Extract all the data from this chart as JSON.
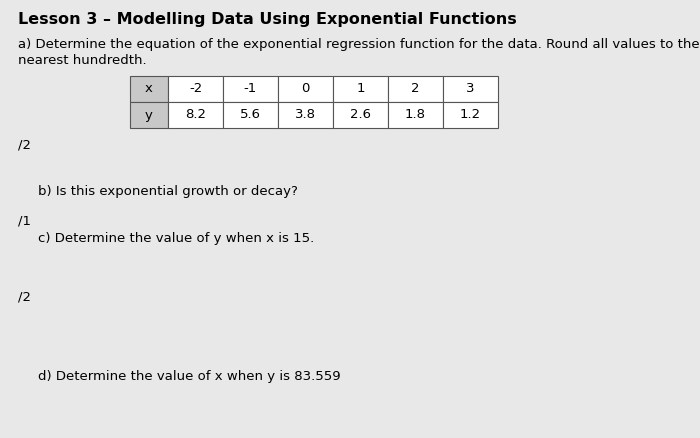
{
  "title": "Lesson 3 – Modelling Data Using Exponential Functions",
  "title_fontsize": 11.5,
  "title_fontweight": "bold",
  "background_color": "#e8e8e8",
  "text_color": "#000000",
  "part_a_text_line1": "a) Determine the equation of the exponential regression function for the data. Round all values to the",
  "part_a_text_line2": "nearest hundredth.",
  "table_x_headers": [
    "x",
    "-2",
    "-1",
    "0",
    "1",
    "2",
    "3"
  ],
  "table_y_headers": [
    "y",
    "8.2",
    "5.6",
    "3.8",
    "2.6",
    "1.8",
    "1.2"
  ],
  "mark_a": "/2",
  "part_b_text": "b) Is this exponential growth or decay?",
  "mark_b": "/1",
  "part_c_text": "c) Determine the value of y when x is 15.",
  "mark_c": "/2",
  "part_d_text": "d) Determine the value of x when y is 83.559",
  "table_header_bg": "#c8c8c8",
  "table_header_fg": "#000000",
  "table_cell_bg": "#ffffff",
  "table_border_color": "#555555",
  "font_size_body": 9.5,
  "font_size_marks": 9.5
}
